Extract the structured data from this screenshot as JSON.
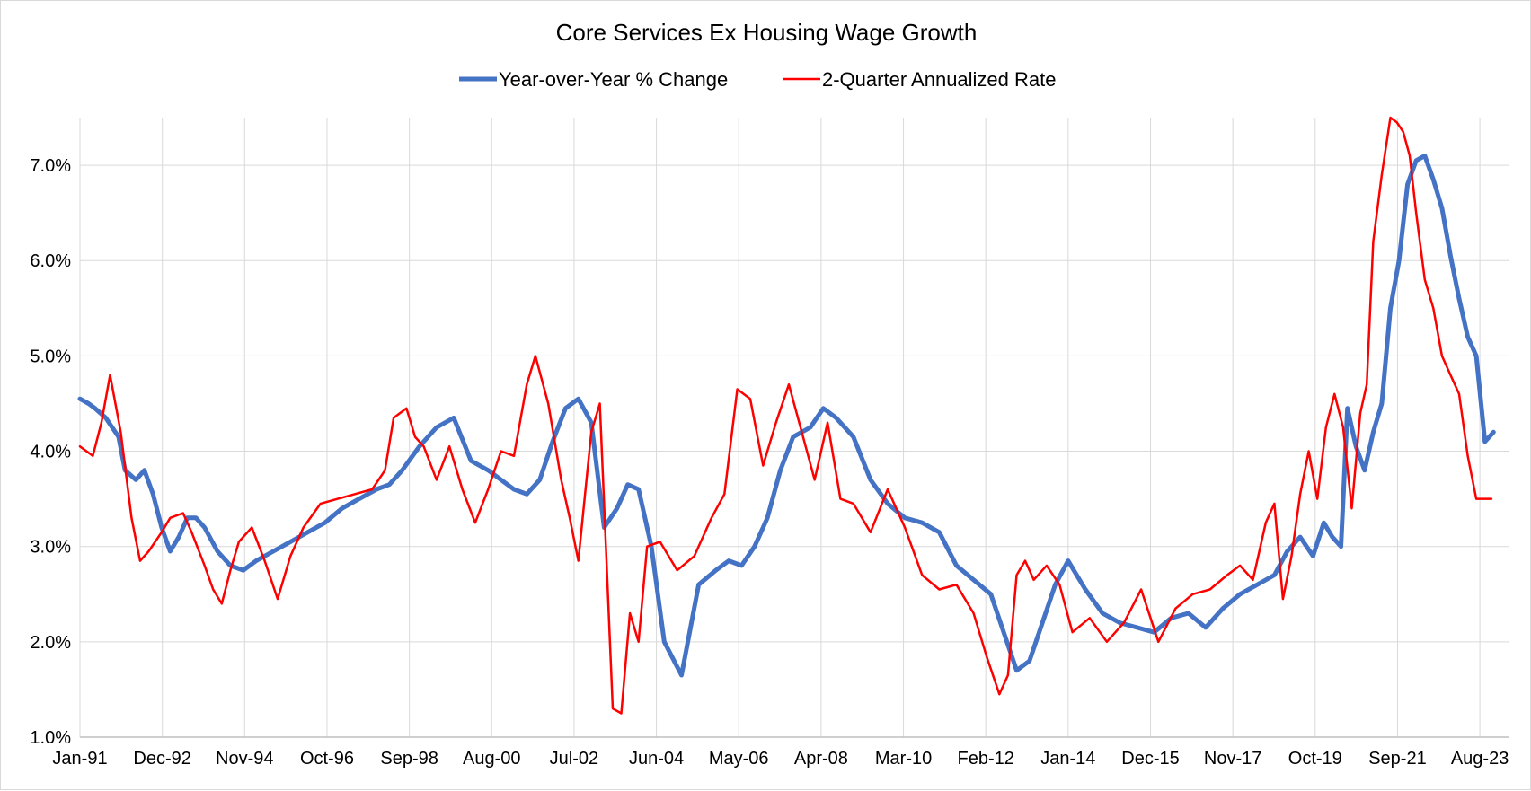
{
  "chart_data": {
    "type": "line",
    "title": "Core Services Ex Housing Wage Growth",
    "xlabel": "",
    "ylabel": "",
    "ylim": [
      1.0,
      7.5
    ],
    "yticks": [
      1.0,
      2.0,
      3.0,
      4.0,
      5.0,
      6.0,
      7.0
    ],
    "ytick_labels": [
      "1.0%",
      "2.0%",
      "3.0%",
      "4.0%",
      "5.0%",
      "6.0%",
      "7.0%"
    ],
    "xlim": [
      1991.0,
      2024.25
    ],
    "xticks": [
      1991.0,
      1992.917,
      1994.833,
      1996.75,
      1998.667,
      2000.583,
      2002.5,
      2004.417,
      2006.333,
      2008.25,
      2010.167,
      2012.083,
      2014.0,
      2015.917,
      2017.833,
      2019.75,
      2021.667,
      2023.583
    ],
    "xtick_labels": [
      "Jan-91",
      "Dec-92",
      "Nov-94",
      "Oct-96",
      "Sep-98",
      "Aug-00",
      "Jul-02",
      "Jun-04",
      "May-06",
      "Apr-08",
      "Mar-10",
      "Feb-12",
      "Jan-14",
      "Dec-15",
      "Nov-17",
      "Oct-19",
      "Sep-21",
      "Aug-23"
    ],
    "grid": true,
    "legend_position": "top",
    "series": [
      {
        "name": "Year-over-Year % Change",
        "color": "#4472C4",
        "x": [
          1991.0,
          1991.2,
          1991.35,
          1991.6,
          1991.9,
          1992.05,
          1992.3,
          1992.5,
          1992.7,
          1992.9,
          1993.1,
          1993.3,
          1993.5,
          1993.7,
          1993.9,
          1994.2,
          1994.5,
          1994.8,
          1995.1,
          1995.5,
          1995.9,
          1996.3,
          1996.7,
          1997.1,
          1997.5,
          1997.9,
          1998.2,
          1998.5,
          1998.9,
          1999.3,
          1999.7,
          2000.1,
          2000.5,
          2000.8,
          2001.1,
          2001.4,
          2001.7,
          2002.0,
          2002.3,
          2002.6,
          2002.9,
          2003.2,
          2003.5,
          2003.75,
          2004.0,
          2004.3,
          2004.6,
          2005.0,
          2005.4,
          2005.8,
          2006.1,
          2006.4,
          2006.7,
          2007.0,
          2007.3,
          2007.6,
          2008.0,
          2008.3,
          2008.6,
          2009.0,
          2009.4,
          2009.8,
          2010.2,
          2010.6,
          2011.0,
          2011.4,
          2011.8,
          2012.2,
          2012.5,
          2012.8,
          2013.1,
          2013.4,
          2013.7,
          2014.0,
          2014.4,
          2014.8,
          2015.2,
          2015.6,
          2016.0,
          2016.4,
          2016.8,
          2017.2,
          2017.6,
          2018.0,
          2018.4,
          2018.8,
          2019.1,
          2019.4,
          2019.7,
          2019.95,
          2020.15,
          2020.35,
          2020.5,
          2020.7,
          2020.9,
          2021.1,
          2021.3,
          2021.5,
          2021.7,
          2021.9,
          2022.1,
          2022.3,
          2022.5,
          2022.7,
          2022.9,
          2023.1,
          2023.3,
          2023.5,
          2023.7,
          2023.9
        ],
        "values": [
          4.55,
          4.5,
          4.45,
          4.35,
          4.15,
          3.8,
          3.7,
          3.8,
          3.55,
          3.2,
          2.95,
          3.1,
          3.3,
          3.3,
          3.2,
          2.95,
          2.8,
          2.75,
          2.85,
          2.95,
          3.05,
          3.15,
          3.25,
          3.4,
          3.5,
          3.6,
          3.65,
          3.8,
          4.05,
          4.25,
          4.35,
          3.9,
          3.8,
          3.7,
          3.6,
          3.55,
          3.7,
          4.1,
          4.45,
          4.55,
          4.3,
          3.2,
          3.4,
          3.65,
          3.6,
          3.0,
          2.0,
          1.65,
          2.6,
          2.75,
          2.85,
          2.8,
          3.0,
          3.3,
          3.8,
          4.15,
          4.25,
          4.45,
          4.35,
          4.15,
          3.7,
          3.45,
          3.3,
          3.25,
          3.15,
          2.8,
          2.65,
          2.5,
          2.1,
          1.7,
          1.8,
          2.2,
          2.6,
          2.85,
          2.55,
          2.3,
          2.2,
          2.15,
          2.1,
          2.25,
          2.3,
          2.15,
          2.35,
          2.5,
          2.6,
          2.7,
          2.95,
          3.1,
          2.9,
          3.25,
          3.1,
          3.0,
          4.45,
          4.05,
          3.8,
          4.2,
          4.5,
          5.5,
          6.0,
          6.8,
          7.05,
          7.1,
          6.85,
          6.55,
          6.05,
          5.6,
          5.2,
          5.0,
          4.1,
          4.2
        ]
      },
      {
        "name": "2-Quarter Annualized Rate",
        "color": "#FF0000",
        "x": [
          1991.0,
          1991.3,
          1991.5,
          1991.7,
          1991.95,
          1992.2,
          1992.4,
          1992.6,
          1992.9,
          1993.1,
          1993.4,
          1993.6,
          1993.9,
          1994.1,
          1994.3,
          1994.5,
          1994.7,
          1995.0,
          1995.3,
          1995.6,
          1995.9,
          1996.2,
          1996.6,
          1997.0,
          1997.4,
          1997.8,
          1998.1,
          1998.3,
          1998.6,
          1998.8,
          1999.0,
          1999.3,
          1999.6,
          1999.9,
          2000.2,
          2000.5,
          2000.8,
          2001.1,
          2001.4,
          2001.6,
          2001.9,
          2002.2,
          2002.4,
          2002.6,
          2002.9,
          2003.1,
          2003.25,
          2003.4,
          2003.6,
          2003.8,
          2004.0,
          2004.2,
          2004.5,
          2004.9,
          2005.3,
          2005.7,
          2006.0,
          2006.3,
          2006.6,
          2006.9,
          2007.2,
          2007.5,
          2007.8,
          2008.1,
          2008.4,
          2008.7,
          2009.0,
          2009.4,
          2009.8,
          2010.2,
          2010.6,
          2011.0,
          2011.4,
          2011.8,
          2012.1,
          2012.4,
          2012.6,
          2012.8,
          2013.0,
          2013.2,
          2013.5,
          2013.8,
          2014.1,
          2014.5,
          2014.9,
          2015.3,
          2015.7,
          2016.1,
          2016.5,
          2016.9,
          2017.3,
          2017.7,
          2018.0,
          2018.3,
          2018.6,
          2018.8,
          2019.0,
          2019.2,
          2019.4,
          2019.6,
          2019.8,
          2020.0,
          2020.2,
          2020.4,
          2020.6,
          2020.8,
          2020.95,
          2021.1,
          2021.3,
          2021.5,
          2021.65,
          2021.8,
          2021.95,
          2022.1,
          2022.3,
          2022.5,
          2022.7,
          2022.9,
          2023.1,
          2023.3,
          2023.5,
          2023.7,
          2023.85
        ],
        "values": [
          4.05,
          3.95,
          4.3,
          4.8,
          4.2,
          3.3,
          2.85,
          2.95,
          3.15,
          3.3,
          3.35,
          3.15,
          2.8,
          2.55,
          2.4,
          2.75,
          3.05,
          3.2,
          2.85,
          2.45,
          2.9,
          3.2,
          3.45,
          3.5,
          3.55,
          3.6,
          3.8,
          4.35,
          4.45,
          4.15,
          4.05,
          3.7,
          4.05,
          3.6,
          3.25,
          3.6,
          4.0,
          3.95,
          4.7,
          5.0,
          4.5,
          3.7,
          3.3,
          2.85,
          4.2,
          4.5,
          2.9,
          1.3,
          1.25,
          2.3,
          2.0,
          3.0,
          3.05,
          2.75,
          2.9,
          3.3,
          3.55,
          4.65,
          4.55,
          3.85,
          4.3,
          4.7,
          4.2,
          3.7,
          4.3,
          3.5,
          3.45,
          3.15,
          3.6,
          3.2,
          2.7,
          2.55,
          2.6,
          2.3,
          1.85,
          1.45,
          1.65,
          2.7,
          2.85,
          2.65,
          2.8,
          2.6,
          2.1,
          2.25,
          2.0,
          2.2,
          2.55,
          2.0,
          2.35,
          2.5,
          2.55,
          2.7,
          2.8,
          2.65,
          3.25,
          3.45,
          2.45,
          2.9,
          3.55,
          4.0,
          3.5,
          4.25,
          4.6,
          4.25,
          3.4,
          4.4,
          4.7,
          6.2,
          6.9,
          7.5,
          7.45,
          7.35,
          7.1,
          6.5,
          5.8,
          5.5,
          5.0,
          4.8,
          4.6,
          3.95,
          3.5,
          3.5,
          3.5
        ]
      }
    ]
  }
}
